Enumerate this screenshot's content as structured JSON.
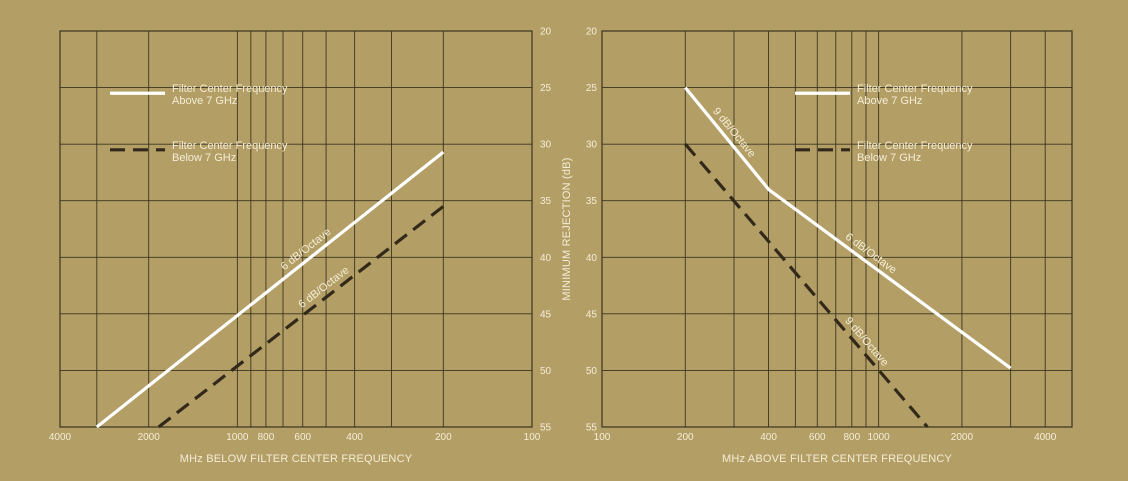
{
  "colors": {
    "background": "#b39f66",
    "grid": "#3b3420",
    "above_series": "#ffffff",
    "below_series": "#33291a",
    "text": "#f4ecd6"
  },
  "chart_data": [
    {
      "type": "line",
      "title": "",
      "xlabel": "MHz BELOW FILTER CENTER FREQUENCY",
      "ylabel": "",
      "x_scale": "log",
      "x_reversed": true,
      "xlim": [
        4000,
        100
      ],
      "ylim": [
        20,
        55
      ],
      "y_reversed": true,
      "grid": true,
      "x_tick_labels": [
        "4000",
        "2000",
        "1000",
        "800",
        "600",
        "400",
        "200",
        "100"
      ],
      "x_tick_values": [
        4000,
        2000,
        1000,
        800,
        600,
        400,
        200,
        100
      ],
      "legend_position": "top-left",
      "series": [
        {
          "name": "Filter Center Frequency Above 7 GHz",
          "style": "solid",
          "x": [
            3000,
            200
          ],
          "y": [
            55,
            30.7
          ]
        },
        {
          "name": "Filter Center Frequency Below 7 GHz",
          "style": "dashed",
          "x": [
            1850,
            200
          ],
          "y": [
            55,
            35.5
          ]
        }
      ],
      "annotations": [
        {
          "text": "6 dB/Octave",
          "series": 0,
          "at": 0.62
        },
        {
          "text": "6 dB/Octave",
          "series": 1,
          "at": 0.6
        }
      ]
    },
    {
      "type": "line",
      "title": "",
      "xlabel": "MHz ABOVE FILTER CENTER FREQUENCY",
      "ylabel": "MINIMUM REJECTION (dB)",
      "x_scale": "log",
      "xlim": [
        100,
        5000
      ],
      "ylim": [
        20,
        55
      ],
      "y_reversed": true,
      "grid": true,
      "x_tick_labels": [
        "100",
        "200",
        "400",
        "600",
        "800",
        "1000",
        "2000",
        "4000"
      ],
      "x_tick_values": [
        100,
        200,
        400,
        600,
        800,
        1000,
        2000,
        4000
      ],
      "y_tick_labels": [
        "20",
        "25",
        "30",
        "35",
        "40",
        "45",
        "50",
        "55"
      ],
      "y_tick_values": [
        20,
        25,
        30,
        35,
        40,
        45,
        50,
        55
      ],
      "legend_position": "top-right",
      "series": [
        {
          "name": "Filter Center Frequency Above 7 GHz",
          "style": "solid",
          "x": [
            200,
            400,
            3000
          ],
          "y": [
            25,
            34,
            49.8
          ]
        },
        {
          "name": "Filter Center Frequency Below 7 GHz",
          "style": "dashed",
          "x": [
            200,
            1500
          ],
          "y": [
            30,
            55
          ]
        }
      ],
      "annotations": [
        {
          "text": "9 dB/Octave",
          "series": 0,
          "segment": 0,
          "at": 0.5
        },
        {
          "text": "6 dB/Octave",
          "series": 0,
          "segment": 1,
          "at": 0.4
        },
        {
          "text": "9 dB/Octave",
          "series": 1,
          "segment": 0,
          "at": 0.72
        }
      ]
    }
  ]
}
